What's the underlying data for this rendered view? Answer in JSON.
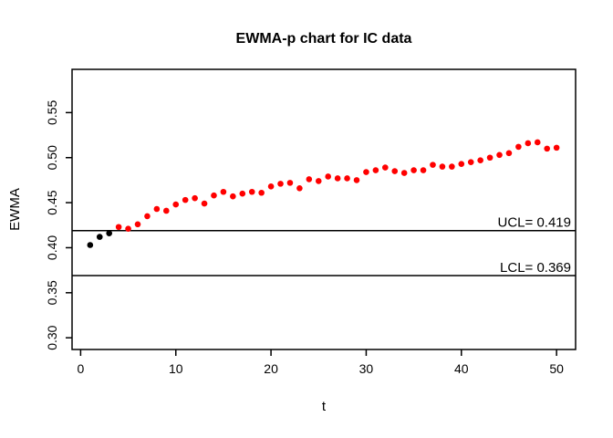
{
  "chart_data": {
    "type": "scatter",
    "title": "EWMA-p chart for IC data",
    "xlabel": "t",
    "ylabel": "EWMA",
    "grid": false,
    "legend": "none",
    "xlim": [
      -0.9,
      52.0
    ],
    "ylim": [
      0.287,
      0.598
    ],
    "x_ticks": [
      0,
      10,
      20,
      30,
      40,
      50
    ],
    "x_tick_labels": [
      "0",
      "10",
      "20",
      "30",
      "40",
      "50"
    ],
    "y_ticks": [
      0.3,
      0.35,
      0.4,
      0.45,
      0.5,
      0.55
    ],
    "y_tick_labels": [
      "0.30",
      "0.35",
      "0.40",
      "0.45",
      "0.50",
      "0.55"
    ],
    "ucl": {
      "label": "UCL= 0.419",
      "value": 0.419
    },
    "lcl": {
      "label": "LCL= 0.369",
      "value": 0.369
    },
    "x": [
      1,
      2,
      3,
      4,
      5,
      6,
      7,
      8,
      9,
      10,
      11,
      12,
      13,
      14,
      15,
      16,
      17,
      18,
      19,
      20,
      21,
      22,
      23,
      24,
      25,
      26,
      27,
      28,
      29,
      30,
      31,
      32,
      33,
      34,
      35,
      36,
      37,
      38,
      39,
      40,
      41,
      42,
      43,
      44,
      45,
      46,
      47,
      48,
      49,
      50
    ],
    "values": [
      0.403,
      0.412,
      0.416,
      0.423,
      0.421,
      0.426,
      0.435,
      0.443,
      0.441,
      0.448,
      0.453,
      0.455,
      0.449,
      0.458,
      0.462,
      0.457,
      0.46,
      0.462,
      0.461,
      0.468,
      0.471,
      0.472,
      0.466,
      0.476,
      0.474,
      0.479,
      0.477,
      0.477,
      0.475,
      0.484,
      0.486,
      0.489,
      0.485,
      0.483,
      0.486,
      0.486,
      0.492,
      0.49,
      0.49,
      0.493,
      0.495,
      0.497,
      0.5,
      0.503,
      0.505,
      0.512,
      0.516,
      0.517,
      0.51,
      0.511
    ],
    "in_control_start_count": 3,
    "colors": {
      "start_points": "#000000",
      "points": "#ff0000",
      "lines": "#000000",
      "background": "#ffffff"
    }
  }
}
